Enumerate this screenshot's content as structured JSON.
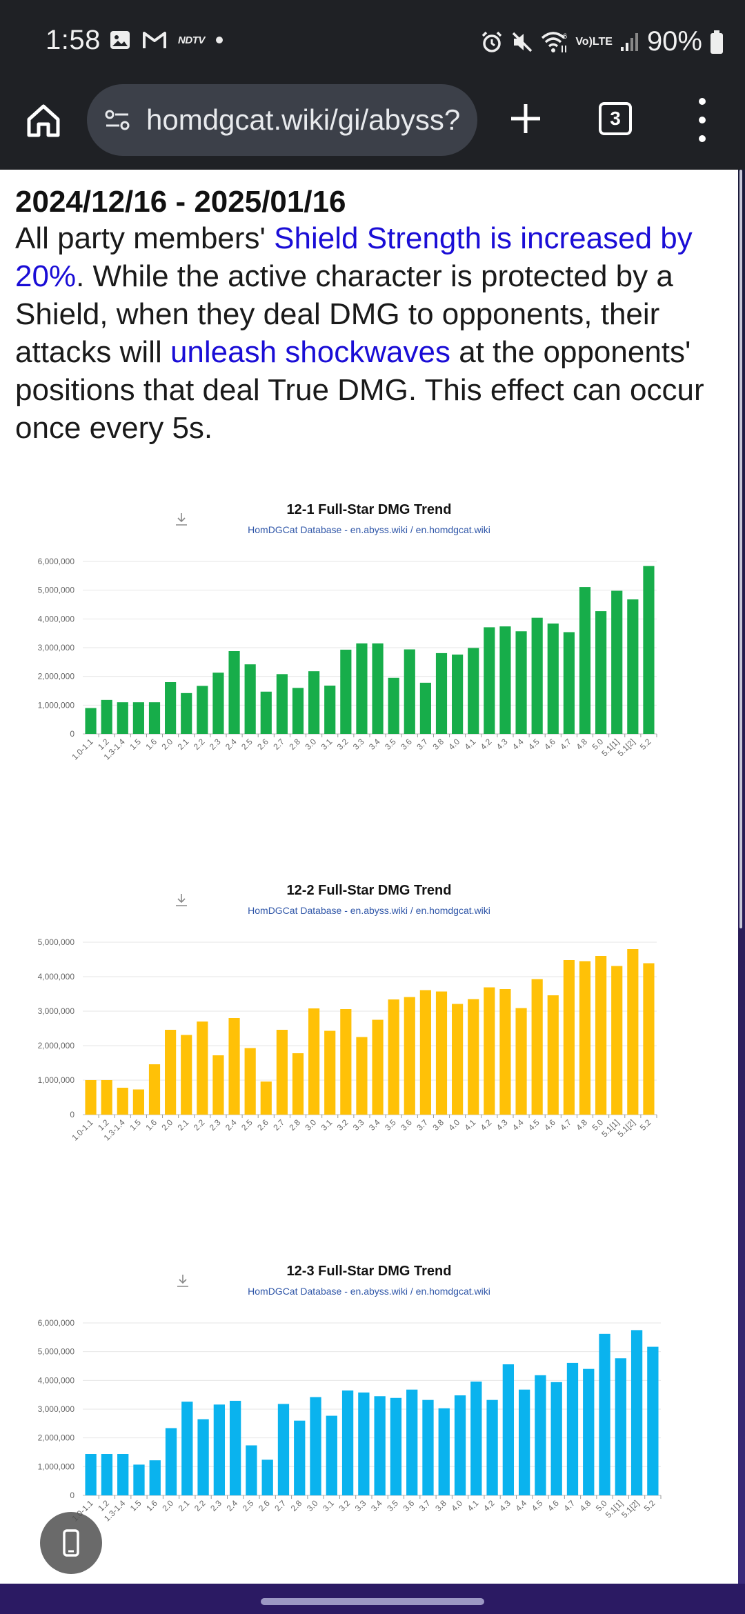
{
  "status_bar": {
    "time": "1:58",
    "notification_icons": [
      "gallery-icon",
      "gmail-icon",
      "ndtv-icon",
      "dot-icon"
    ],
    "ndtv_label": "NDTV",
    "system_icons": [
      "alarm-icon",
      "mute-icon",
      "wifi-icon",
      "volte-icon",
      "signal-icon"
    ],
    "lte_label_top": "Vo)",
    "lte_label_bottom": "LTE",
    "wifi_label": "6",
    "battery_text": "90%"
  },
  "browser": {
    "url": "homdgcat.wiki/gi/abyss?",
    "tab_count": "3"
  },
  "content": {
    "date_range": "2024/12/16 - 2025/01/16",
    "description": {
      "part1": "All party members' ",
      "link1": "Shield Strength is increased by 20%",
      "part2": ". While the active character is protected by a Shield, when they deal DMG to opponents, their attacks will ",
      "link2": "unleash shockwaves",
      "part3": " at the opponents' positions that deal True DMG. This effect can occur once every 5s."
    }
  },
  "colors": {
    "chart1": "#17ad4a",
    "chart2": "#ffc107",
    "chart3": "#0ab3ee",
    "link": "#1a0dd6"
  },
  "chart_data": [
    {
      "type": "bar",
      "title": "12-1 Full-Star DMG Trend",
      "subtitle": "HomDGCat Database - en.abyss.wiki / en.homdgcat.wiki",
      "categories": [
        "1.0-1.1",
        "1.2",
        "1.3-1.4",
        "1.5",
        "1.6",
        "2.0",
        "2.1",
        "2.2",
        "2.3",
        "2.4",
        "2.5",
        "2.6",
        "2.7",
        "2.8",
        "3.0",
        "3.1",
        "3.2",
        "3.3",
        "3.4",
        "3.5",
        "3.6",
        "3.7",
        "3.8",
        "4.0",
        "4.1",
        "4.2",
        "4.3",
        "4.4",
        "4.5",
        "4.6",
        "4.7",
        "4.8",
        "5.0",
        "5.1[1]",
        "5.1[2]",
        "5.2"
      ],
      "values": [
        900000,
        1180000,
        1100000,
        1100000,
        1100000,
        1800000,
        1420000,
        1670000,
        2130000,
        2880000,
        2420000,
        1470000,
        2080000,
        1600000,
        2180000,
        1680000,
        2930000,
        3150000,
        3150000,
        1950000,
        2940000,
        1780000,
        2810000,
        2760000,
        2990000,
        3710000,
        3740000,
        3570000,
        4040000,
        3840000,
        3540000,
        5110000,
        4270000,
        4980000,
        4680000,
        5840000
      ],
      "y_ticks": [
        "0",
        "1,000,000",
        "2,000,000",
        "3,000,000",
        "4,000,000",
        "5,000,000",
        "6,000,000"
      ],
      "ylim": [
        0,
        6000000
      ],
      "grid": true
    },
    {
      "type": "bar",
      "title": "12-2 Full-Star DMG Trend",
      "subtitle": "HomDGCat Database - en.abyss.wiki / en.homdgcat.wiki",
      "categories": [
        "1.0-1.1",
        "1.2",
        "1.3-1.4",
        "1.5",
        "1.6",
        "2.0",
        "2.1",
        "2.2",
        "2.3",
        "2.4",
        "2.5",
        "2.6",
        "2.7",
        "2.8",
        "3.0",
        "3.1",
        "3.2",
        "3.3",
        "3.4",
        "3.5",
        "3.6",
        "3.7",
        "3.8",
        "4.0",
        "4.1",
        "4.2",
        "4.3",
        "4.4",
        "4.5",
        "4.6",
        "4.7",
        "4.8",
        "5.0",
        "5.1[1]",
        "5.1[2]",
        "5.2"
      ],
      "values": [
        1000000,
        1000000,
        780000,
        730000,
        1460000,
        2460000,
        2310000,
        2700000,
        1720000,
        2800000,
        1930000,
        960000,
        2460000,
        1780000,
        3080000,
        2430000,
        3060000,
        2250000,
        2750000,
        3340000,
        3410000,
        3610000,
        3570000,
        3210000,
        3350000,
        3690000,
        3640000,
        3090000,
        3930000,
        3460000,
        4480000,
        4450000,
        4600000,
        4310000,
        4800000,
        4390000
      ],
      "y_ticks": [
        "0",
        "1,000,000",
        "2,000,000",
        "3,000,000",
        "4,000,000",
        "5,000,000"
      ],
      "ylim": [
        0,
        5000000
      ],
      "grid": true
    },
    {
      "type": "bar",
      "title": "12-3 Full-Star DMG Trend",
      "subtitle": "HomDGCat Database - en.abyss.wiki / en.homdgcat.wiki",
      "categories": [
        "1.0-1.1",
        "1.2",
        "1.3-1.4",
        "1.5",
        "1.6",
        "2.0",
        "2.1",
        "2.2",
        "2.3",
        "2.4",
        "2.5",
        "2.6",
        "2.7",
        "2.8",
        "3.0",
        "3.1",
        "3.2",
        "3.3",
        "3.4",
        "3.5",
        "3.6",
        "3.7",
        "3.8",
        "4.0",
        "4.1",
        "4.2",
        "4.3",
        "4.4",
        "4.5",
        "4.6",
        "4.7",
        "4.8",
        "5.0",
        "5.1[1]",
        "5.1[2]",
        "5.2"
      ],
      "values": [
        1440000,
        1440000,
        1440000,
        1070000,
        1220000,
        2340000,
        3260000,
        2650000,
        3160000,
        3290000,
        1740000,
        1240000,
        3180000,
        2600000,
        3420000,
        2770000,
        3650000,
        3580000,
        3450000,
        3390000,
        3680000,
        3320000,
        3030000,
        3480000,
        3960000,
        3320000,
        4560000,
        3680000,
        4180000,
        3940000,
        4610000,
        4400000,
        5620000,
        4770000,
        5750000,
        5170000
      ],
      "y_ticks": [
        "0",
        "1,000,000",
        "2,000,000",
        "3,000,000",
        "4,000,000",
        "5,000,000",
        "6,000,000"
      ],
      "ylim": [
        0,
        6000000
      ],
      "grid": true
    }
  ]
}
